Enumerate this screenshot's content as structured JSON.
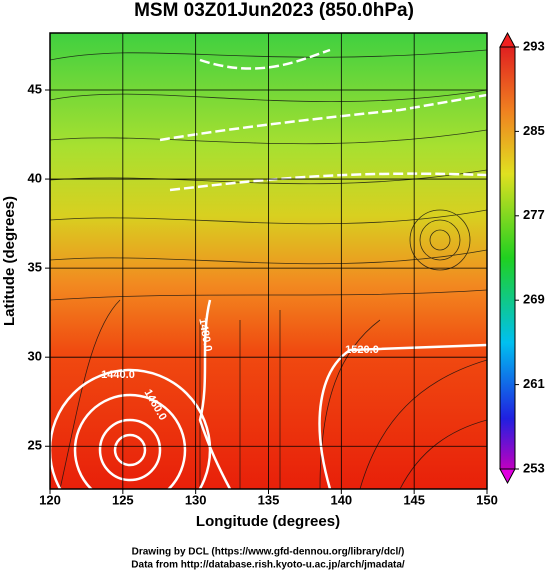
{
  "chart_data": {
    "type": "map",
    "title": "MSM 03Z01Jun2023 (850.0hPa)",
    "xlabel": "Longitude (degrees)",
    "ylabel": "Latitude  (degrees)",
    "xlim": [
      120,
      150
    ],
    "xticks": [
      120,
      125,
      130,
      135,
      140,
      145,
      150
    ],
    "ylim": [
      22.6,
      48.2
    ],
    "yticks": [
      25,
      30,
      35,
      40,
      45
    ],
    "grid": true,
    "colorbar": {
      "lim": [
        253,
        293
      ],
      "ticks": [
        253,
        261,
        269,
        277,
        285,
        293
      ]
    },
    "contour_labels": [
      "1440.0",
      "1460.0",
      "1480.0",
      "1520.0"
    ],
    "footer": [
      "Drawing by DCL (https://www.gfd-dennou.org/library/dcl/)",
      "Data from http://database.rish.kyoto-u.ac.jp/arch/jmadata/"
    ]
  }
}
